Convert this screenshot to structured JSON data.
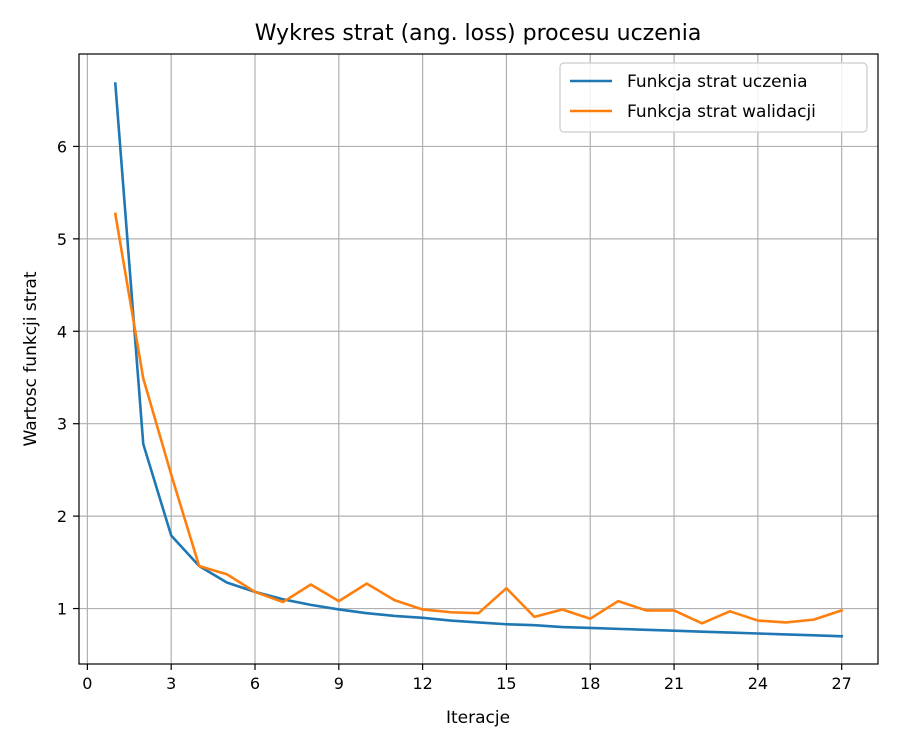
{
  "chart_data": {
    "type": "line",
    "title": "Wykres strat (ang. loss) procesu uczenia",
    "xlabel": "Iteracje",
    "ylabel": "Wartosc funkcji strat",
    "xlim": [
      -0.3,
      28.3
    ],
    "ylim": [
      0.4,
      7.0
    ],
    "x_ticks": [
      0,
      3,
      6,
      9,
      12,
      15,
      18,
      21,
      24,
      27
    ],
    "y_ticks": [
      1,
      2,
      3,
      4,
      5,
      6
    ],
    "grid": true,
    "legend_position": "top-right",
    "x": [
      1,
      2,
      3,
      4,
      5,
      6,
      7,
      8,
      9,
      10,
      11,
      12,
      13,
      14,
      15,
      16,
      17,
      18,
      19,
      20,
      21,
      22,
      23,
      24,
      25,
      26,
      27
    ],
    "series": [
      {
        "name": "Funkcja strat uczenia",
        "color": "#1f77b4",
        "values": [
          6.68,
          2.78,
          1.79,
          1.46,
          1.28,
          1.18,
          1.1,
          1.04,
          0.99,
          0.95,
          0.92,
          0.9,
          0.87,
          0.85,
          0.83,
          0.82,
          0.8,
          0.79,
          0.78,
          0.77,
          0.76,
          0.75,
          0.74,
          0.73,
          0.72,
          0.71,
          0.7
        ]
      },
      {
        "name": "Funkcja strat walidacji",
        "color": "#ff7f0e",
        "values": [
          5.27,
          3.49,
          2.45,
          1.46,
          1.37,
          1.18,
          1.07,
          1.26,
          1.08,
          1.27,
          1.09,
          0.99,
          0.96,
          0.95,
          1.22,
          0.91,
          0.99,
          0.89,
          1.08,
          0.98,
          0.98,
          0.84,
          0.97,
          0.87,
          0.85,
          0.88,
          0.98
        ]
      }
    ]
  }
}
